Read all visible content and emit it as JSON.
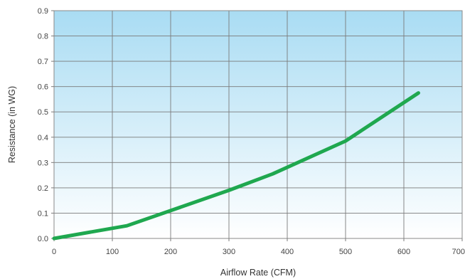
{
  "chart_data": {
    "type": "line",
    "title": "",
    "xlabel": "Airflow Rate (CFM)",
    "ylabel": "Resistance (in WG)",
    "xlim": [
      0,
      700
    ],
    "ylim": [
      0,
      0.9
    ],
    "x_ticks": [
      "0",
      "100",
      "200",
      "300",
      "400",
      "500",
      "600",
      "700"
    ],
    "y_ticks": [
      "0.0",
      "0.1",
      "0.2",
      "0.3",
      "0.4",
      "0.5",
      "0.6",
      "0.7",
      "0.8",
      "0.9"
    ],
    "grid": true,
    "legend": "none",
    "series": [
      {
        "x": [
          0,
          125,
          200,
          300,
          375,
          500,
          625
        ],
        "y": [
          0.0,
          0.05,
          0.11,
          0.19,
          0.255,
          0.385,
          0.575
        ]
      }
    ],
    "colors": {
      "line": "#1fa84f",
      "grid": "#7a7a7a",
      "plot_top": "#a9dcf3",
      "plot_bottom": "#ffffff"
    }
  }
}
